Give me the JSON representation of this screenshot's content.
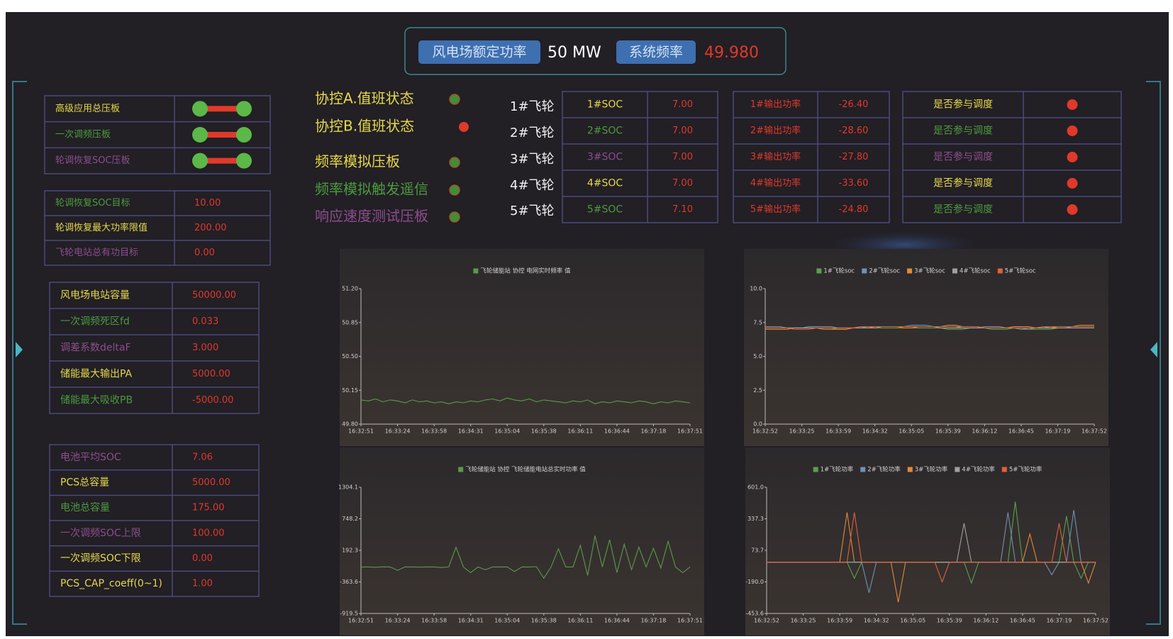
{
  "header": {
    "rated_power_label": "风电场额定功率",
    "rated_power": "50 MW",
    "frequency_label": "系统频率",
    "frequency": "49.980"
  },
  "switch_panel": {
    "rows": [
      "高级应用总压板",
      "一次调频压板",
      "轮调恢复SOC压板"
    ]
  },
  "params_1": {
    "rows": [
      [
        "轮调恢复SOC目标",
        "10.00"
      ],
      [
        "轮调恢复最大功率限值",
        "200.00"
      ],
      [
        "飞轮电站总有功目标",
        "0.00"
      ]
    ]
  },
  "params_2": {
    "rows": [
      [
        "风电场电站容量",
        "50000.00"
      ],
      [
        "一次调频死区fd",
        "0.033"
      ],
      [
        "调差系数deltaF",
        "3.000"
      ],
      [
        "储能最大输出PA",
        "5000.00"
      ],
      [
        "储能最大吸收PB",
        "-5000.00"
      ]
    ]
  },
  "params_3": {
    "rows": [
      [
        "电池平均SOC",
        "7.06"
      ],
      [
        "PCS总容量",
        "5000.00"
      ],
      [
        "电池总容量",
        "175.00"
      ],
      [
        "一次调频SOC上限",
        "100.00"
      ],
      [
        "一次调频SOC下限",
        "0.00"
      ],
      [
        "PCS_CAP_coeff(0~1)",
        "1.00"
      ]
    ]
  },
  "status": {
    "rows": [
      "协控A.值班状态",
      "协控B.值班状态",
      "频率模拟压板",
      "频率模拟触发遥信",
      "响应速度测试压板"
    ]
  },
  "flywheels": [
    "1#飞轮",
    "2#飞轮",
    "3#飞轮",
    "4#飞轮",
    "5#飞轮"
  ],
  "soc_table": {
    "rows": [
      [
        "1#SOC",
        "7.00"
      ],
      [
        "2#SOC",
        "7.00"
      ],
      [
        "3#SOC",
        "7.00"
      ],
      [
        "4#SOC",
        "7.00"
      ],
      [
        "5#SOC",
        "7.10"
      ]
    ]
  },
  "output_table": {
    "rows": [
      [
        "1#输出功率",
        "-26.40"
      ],
      [
        "2#输出功率",
        "-28.60"
      ],
      [
        "3#输出功率",
        "-27.80"
      ],
      [
        "4#输出功率",
        "-33.60"
      ],
      [
        "5#输出功率",
        "-24.80"
      ]
    ]
  },
  "dispatch_table": {
    "rows": [
      "是否参与调度",
      "是否参与调度",
      "是否参与调度",
      "是否参与调度",
      "是否参与调度"
    ]
  },
  "chart_data": [
    {
      "type": "line",
      "categories": [
        "16:32:51",
        null,
        null,
        null,
        null,
        "16:33:24",
        null,
        null,
        null,
        null,
        "16:33:58",
        null,
        null,
        null,
        null,
        "16:34:31",
        null,
        null,
        null,
        null,
        "16:35:04",
        null,
        null,
        null,
        null,
        "16:35:38",
        null,
        null,
        null,
        null,
        "16:36:11",
        null,
        null,
        null,
        null,
        "16:36:44",
        null,
        null,
        null,
        null,
        "16:37:18",
        null,
        null,
        null,
        null,
        "16:37:51"
      ],
      "series": [
        {
          "name": "飞轮储能站 协控 电网实时频率 值",
          "color": "#5a9a4a",
          "values": [
            50.05,
            50.04,
            50.06,
            50.03,
            50.05,
            50.04,
            50.02,
            50.05,
            50.03,
            50.04,
            50.02,
            50.03,
            50.01,
            50.03,
            50.02,
            50.04,
            50.03,
            50.05,
            50.06,
            50.04,
            50.07,
            50.05,
            50.04,
            50.06,
            50.03,
            50.05,
            50.04,
            50.03,
            50.02,
            50.04,
            50.03,
            50.05,
            50.01,
            50.03,
            50.02,
            50.04,
            50.03,
            50.02,
            50.04,
            50.03,
            50.01,
            50.03,
            50.02,
            50.04,
            50.03,
            50.02
          ]
        }
      ],
      "ylim": [
        49.8,
        51.2
      ],
      "yticks": [
        {
          "value": 49.8,
          "label": "49.80"
        },
        50.15,
        {
          "value": 50.5,
          "label": "50.50"
        },
        50.85,
        {
          "value": 51.2,
          "label": "51.20"
        }
      ]
    },
    {
      "type": "line",
      "categories": [
        "16:32:52",
        null,
        null,
        null,
        null,
        "16:33:25",
        null,
        null,
        null,
        null,
        "16:33:59",
        null,
        null,
        null,
        null,
        "16:34:32",
        null,
        null,
        null,
        null,
        "16:35:05",
        null,
        null,
        null,
        null,
        "16:35:39",
        null,
        null,
        null,
        null,
        "16:36:12",
        null,
        null,
        null,
        null,
        "16:36:45",
        null,
        null,
        null,
        null,
        "16:37:19",
        null,
        null,
        null,
        null,
        "16:37:52"
      ],
      "series": [
        {
          "name": "1#飞轮soc",
          "color": "#5aa04c",
          "values": [
            7.1,
            7.1,
            7.1,
            7.1,
            7.1,
            7.1,
            7.1,
            7.1,
            7.1,
            7.1,
            7.0,
            7.0,
            7.1,
            7.1,
            7.1,
            7.1,
            7.1,
            7.1,
            7.1,
            7.1,
            7.1,
            7.1,
            7.1,
            7.1,
            7.1,
            7.0,
            7.0,
            7.0,
            7.1,
            7.1,
            7.1,
            7.0,
            7.0,
            7.0,
            7.1,
            7.1,
            7.0,
            7.0,
            7.0,
            7.0,
            7.1,
            7.1,
            7.1,
            7.1,
            7.1,
            7.1
          ]
        },
        {
          "name": "2#飞轮soc",
          "color": "#6d93b4",
          "values": [
            7.2,
            7.2,
            7.2,
            7.1,
            7.1,
            7.1,
            7.2,
            7.2,
            7.2,
            7.2,
            7.1,
            7.1,
            7.1,
            7.1,
            7.2,
            7.2,
            7.2,
            7.2,
            7.2,
            7.2,
            7.3,
            7.3,
            7.3,
            7.2,
            7.2,
            7.2,
            7.2,
            7.1,
            7.1,
            7.1,
            7.2,
            7.2,
            7.2,
            7.1,
            7.1,
            7.0,
            7.0,
            7.1,
            7.1,
            7.2,
            7.2,
            7.2,
            7.1,
            7.1,
            7.1,
            7.1
          ]
        },
        {
          "name": "3#飞轮soc",
          "color": "#e08a3a",
          "values": [
            7.0,
            7.0,
            7.0,
            7.0,
            7.1,
            7.1,
            7.1,
            7.1,
            7.0,
            7.0,
            7.0,
            7.0,
            7.1,
            7.1,
            7.1,
            7.2,
            7.2,
            7.2,
            7.2,
            7.1,
            7.1,
            7.2,
            7.2,
            7.2,
            7.2,
            7.3,
            7.3,
            7.2,
            7.2,
            7.2,
            7.1,
            7.1,
            7.1,
            7.1,
            7.2,
            7.2,
            7.2,
            7.1,
            7.1,
            7.1,
            7.2,
            7.2,
            7.2,
            7.3,
            7.3,
            7.3
          ]
        },
        {
          "name": "4#飞轮soc",
          "color": "#a0a0a0",
          "values": [
            7.1,
            7.1,
            7.1,
            7.1,
            7.1,
            7.1,
            7.1,
            7.1,
            7.1,
            7.1,
            7.1,
            7.1,
            7.1,
            7.1,
            7.1,
            7.1,
            7.2,
            7.2,
            7.2,
            7.2,
            7.2,
            7.2,
            7.2,
            7.2,
            7.1,
            7.1,
            7.1,
            7.1,
            7.1,
            7.1,
            7.1,
            7.1,
            7.1,
            7.1,
            7.1,
            7.1,
            7.1,
            7.1,
            7.1,
            7.1,
            7.1,
            7.1,
            7.1,
            7.1,
            7.1,
            7.1
          ]
        },
        {
          "name": "5#飞轮soc",
          "color": "#e0603a",
          "values": [
            7.1,
            7.1,
            7.1,
            7.1,
            7.0,
            7.0,
            7.0,
            7.1,
            7.1,
            7.1,
            7.1,
            7.1,
            7.1,
            7.2,
            7.2,
            7.2,
            7.2,
            7.2,
            7.2,
            7.2,
            7.2,
            7.2,
            7.2,
            7.2,
            7.2,
            7.2,
            7.2,
            7.2,
            7.2,
            7.2,
            7.1,
            7.1,
            7.1,
            7.1,
            7.1,
            7.1,
            7.1,
            7.1,
            7.2,
            7.2,
            7.2,
            7.2,
            7.2,
            7.2,
            7.2,
            7.2
          ]
        }
      ],
      "ylim": [
        0,
        10
      ],
      "yticks": [
        {
          "value": 0,
          "label": "0.0"
        },
        2.5,
        {
          "value": 5,
          "label": "5.0"
        },
        7.5,
        {
          "value": 10,
          "label": "10.0"
        }
      ]
    },
    {
      "type": "line",
      "categories": [
        "16:32:51",
        null,
        null,
        null,
        null,
        "16:33:24",
        null,
        null,
        null,
        null,
        "16:33:58",
        null,
        null,
        null,
        null,
        "16:34:31",
        null,
        null,
        null,
        null,
        "16:35:04",
        null,
        null,
        null,
        null,
        "16:35:38",
        null,
        null,
        null,
        null,
        "16:36:11",
        null,
        null,
        null,
        null,
        "16:36:44",
        null,
        null,
        null,
        null,
        "16:37:18",
        null,
        null,
        null,
        null,
        "16:37:51"
      ],
      "series": [
        {
          "name": "飞轮储能站 协控 飞轮储能电站总实时功率 值",
          "color": "#5a9a4a",
          "values": [
            -100,
            -100,
            -105,
            -98,
            -100,
            -160,
            -100,
            -100,
            -102,
            -100,
            -100,
            -110,
            -100,
            250,
            -100,
            -200,
            -100,
            -150,
            -100,
            -100,
            -100,
            -180,
            -100,
            -100,
            -95,
            -300,
            -100,
            220,
            -100,
            -100,
            280,
            -250,
            450,
            -100,
            380,
            -200,
            300,
            -150,
            250,
            -100,
            230,
            -120,
            350,
            -100,
            -200,
            -100
          ]
        }
      ],
      "ylim": [
        -919.5,
        1304.1
      ],
      "yticks": [
        -919.5,
        -363.6,
        192.3,
        748.2,
        1304.1
      ]
    },
    {
      "type": "line",
      "categories": [
        "16:32:52",
        null,
        null,
        null,
        null,
        "16:33:25",
        null,
        null,
        null,
        null,
        "16:33:59",
        null,
        null,
        null,
        null,
        "16:34:32",
        null,
        null,
        null,
        null,
        "16:35:05",
        null,
        null,
        null,
        null,
        "16:35:39",
        null,
        null,
        null,
        null,
        "16:36:12",
        null,
        null,
        null,
        null,
        "16:36:45",
        null,
        null,
        null,
        null,
        "16:37:19",
        null,
        null,
        null,
        null,
        "16:37:52"
      ],
      "series": [
        {
          "name": "1#飞轮功率",
          "color": "#5aa04c",
          "values": [
            -25,
            -25,
            -25,
            -25,
            -25,
            -25,
            -25,
            -25,
            -25,
            -25,
            -25,
            -25,
            -160,
            -25,
            -25,
            -25,
            -25,
            -25,
            -25,
            -25,
            -25,
            -25,
            -25,
            -25,
            -25,
            -25,
            -25,
            -25,
            -200,
            -25,
            -25,
            -25,
            -25,
            -25,
            480,
            -25,
            -25,
            -25,
            -25,
            -25,
            -25,
            360,
            -25,
            -160,
            -25,
            -25
          ]
        },
        {
          "name": "2#飞轮功率",
          "color": "#6d93b4",
          "values": [
            -25,
            -25,
            -25,
            -25,
            -25,
            -25,
            -25,
            -25,
            -25,
            -25,
            -25,
            -25,
            -25,
            -25,
            -280,
            -25,
            -25,
            -25,
            -25,
            -25,
            -25,
            -25,
            -25,
            -25,
            -25,
            -25,
            -25,
            -25,
            -25,
            -25,
            -25,
            -25,
            -25,
            390,
            -25,
            -25,
            -25,
            -25,
            -25,
            -130,
            -25,
            -25,
            410,
            -25,
            -25,
            -25
          ]
        },
        {
          "name": "3#飞轮功率",
          "color": "#e08a3a",
          "values": [
            -25,
            -25,
            -25,
            -25,
            -25,
            -25,
            -25,
            -25,
            -25,
            -25,
            -25,
            390,
            -25,
            -25,
            -25,
            -25,
            -25,
            -25,
            -360,
            -25,
            -25,
            -25,
            -25,
            -25,
            -25,
            -25,
            -25,
            -25,
            -25,
            -25,
            -25,
            -25,
            -25,
            -25,
            -25,
            -25,
            210,
            -25,
            -25,
            -25,
            -25,
            -25,
            -25,
            -25,
            -200,
            -25
          ]
        },
        {
          "name": "4#飞轮功率",
          "color": "#a0a0a0",
          "values": [
            -25,
            -25,
            -25,
            -25,
            -25,
            -25,
            -25,
            -25,
            -25,
            -25,
            -25,
            -25,
            -25,
            -25,
            -25,
            -25,
            -25,
            -25,
            -25,
            -25,
            -25,
            -25,
            -25,
            -25,
            -25,
            -25,
            -25,
            300,
            -25,
            -25,
            -25,
            -25,
            -25,
            -25,
            -25,
            -25,
            -25,
            -25,
            -25,
            -25,
            -25,
            -25,
            -25,
            -25,
            -25,
            -25
          ]
        },
        {
          "name": "5#飞轮功率",
          "color": "#e0603a",
          "values": [
            -25,
            -25,
            -25,
            -25,
            -25,
            -25,
            -25,
            -25,
            -25,
            -25,
            -25,
            -25,
            390,
            -25,
            -25,
            -25,
            -25,
            -25,
            -25,
            -25,
            -25,
            -25,
            -25,
            -25,
            -190,
            -25,
            -25,
            -25,
            -25,
            -25,
            -25,
            -25,
            -25,
            -25,
            -25,
            -25,
            -25,
            -25,
            -25,
            -25,
            300,
            -25,
            -25,
            -25,
            -25,
            -25
          ]
        }
      ],
      "ylim": [
        -453.6,
        601
      ],
      "yticks": [
        -453.6,
        {
          "value": -190,
          "label": "-190.0"
        },
        73.7,
        337.3,
        {
          "value": 601,
          "label": "601.0"
        }
      ]
    }
  ]
}
